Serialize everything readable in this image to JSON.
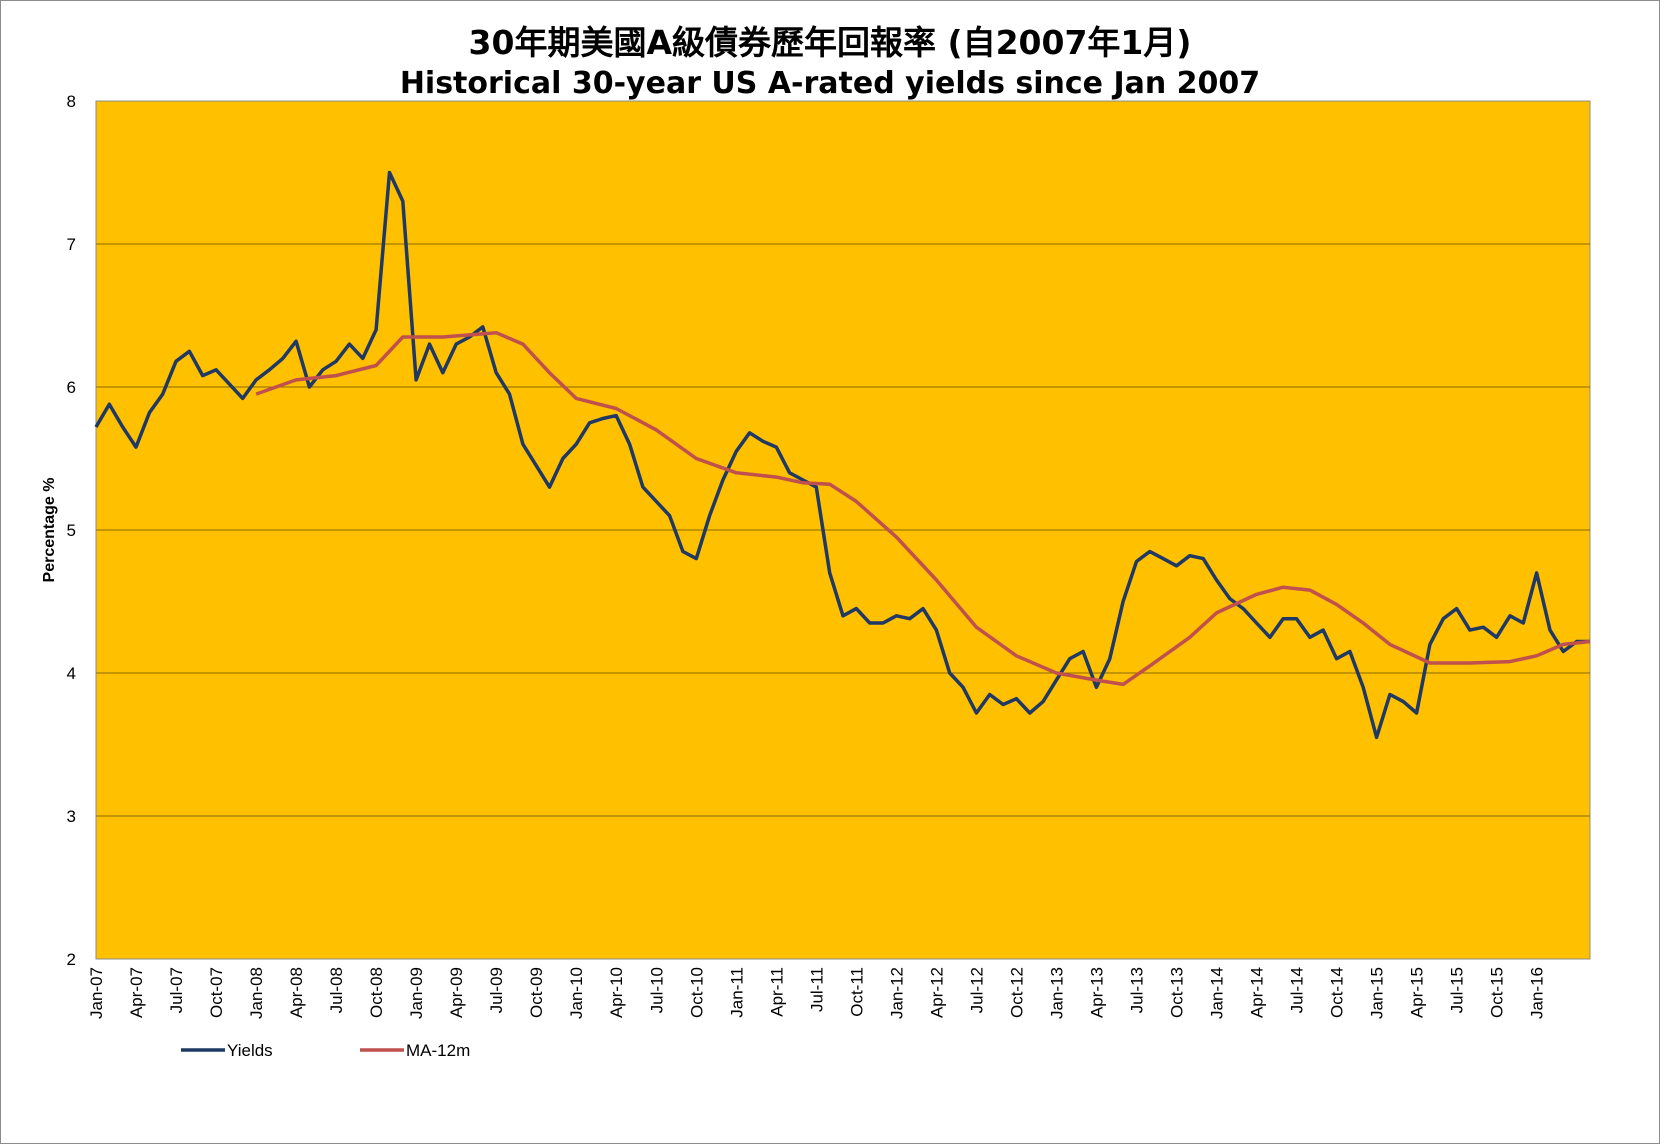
{
  "colors": {
    "plot_bg": "#FFC000",
    "yields": "#1F3864",
    "ma": "#C0504D",
    "gridline": "#8a6a00"
  },
  "chart_data": {
    "type": "line",
    "title": "30年期美國A級債券歷年回報率 (自2007年1月)",
    "subtitle": "Historical 30-year US A-rated yields since Jan 2007",
    "xlabel": "",
    "ylabel": "Percentage %",
    "ylim": [
      2,
      8
    ],
    "yticks": [
      2,
      3,
      4,
      5,
      6,
      7,
      8
    ],
    "xlim": [
      "2007-01",
      "2016-05"
    ],
    "xtick_labels": [
      "Jan-07",
      "Apr-07",
      "Jul-07",
      "Oct-07",
      "Jan-08",
      "Apr-08",
      "Jul-08",
      "Oct-08",
      "Jan-09",
      "Apr-09",
      "Jul-09",
      "Oct-09",
      "Jan-10",
      "Apr-10",
      "Jul-10",
      "Oct-10",
      "Jan-11",
      "Apr-11",
      "Jul-11",
      "Oct-11",
      "Jan-12",
      "Apr-12",
      "Jul-12",
      "Oct-12",
      "Jan-13",
      "Apr-13",
      "Jul-13",
      "Oct-13",
      "Jan-14",
      "Apr-14",
      "Jul-14",
      "Oct-14",
      "Jan-15",
      "Apr-15",
      "Jul-15",
      "Oct-15",
      "Jan-16"
    ],
    "grid": "horizontal",
    "legend_position": "bottom-left",
    "series": [
      {
        "name": "Yields",
        "color": "#1F3864",
        "points": [
          [
            "2007-01",
            5.72
          ],
          [
            "2007-02",
            5.88
          ],
          [
            "2007-03",
            5.72
          ],
          [
            "2007-04",
            5.58
          ],
          [
            "2007-05",
            5.82
          ],
          [
            "2007-06",
            5.95
          ],
          [
            "2007-07",
            6.18
          ],
          [
            "2007-08",
            6.25
          ],
          [
            "2007-09",
            6.08
          ],
          [
            "2007-10",
            6.12
          ],
          [
            "2007-11",
            6.02
          ],
          [
            "2007-12",
            5.92
          ],
          [
            "2008-01",
            6.05
          ],
          [
            "2008-02",
            6.12
          ],
          [
            "2008-03",
            6.2
          ],
          [
            "2008-04",
            6.32
          ],
          [
            "2008-05",
            6.0
          ],
          [
            "2008-06",
            6.12
          ],
          [
            "2008-07",
            6.18
          ],
          [
            "2008-08",
            6.3
          ],
          [
            "2008-09",
            6.2
          ],
          [
            "2008-10",
            6.4
          ],
          [
            "2008-11",
            7.5
          ],
          [
            "2008-12",
            7.3
          ],
          [
            "2009-01",
            6.05
          ],
          [
            "2009-02",
            6.3
          ],
          [
            "2009-03",
            6.1
          ],
          [
            "2009-04",
            6.3
          ],
          [
            "2009-05",
            6.35
          ],
          [
            "2009-06",
            6.42
          ],
          [
            "2009-07",
            6.1
          ],
          [
            "2009-08",
            5.95
          ],
          [
            "2009-09",
            5.6
          ],
          [
            "2009-10",
            5.45
          ],
          [
            "2009-11",
            5.3
          ],
          [
            "2009-12",
            5.5
          ],
          [
            "2010-01",
            5.6
          ],
          [
            "2010-02",
            5.75
          ],
          [
            "2010-03",
            5.78
          ],
          [
            "2010-04",
            5.8
          ],
          [
            "2010-05",
            5.6
          ],
          [
            "2010-06",
            5.3
          ],
          [
            "2010-07",
            5.2
          ],
          [
            "2010-08",
            5.1
          ],
          [
            "2010-09",
            4.85
          ],
          [
            "2010-10",
            4.8
          ],
          [
            "2010-11",
            5.1
          ],
          [
            "2010-12",
            5.35
          ],
          [
            "2011-01",
            5.55
          ],
          [
            "2011-02",
            5.68
          ],
          [
            "2011-03",
            5.62
          ],
          [
            "2011-04",
            5.58
          ],
          [
            "2011-05",
            5.4
          ],
          [
            "2011-06",
            5.35
          ],
          [
            "2011-07",
            5.3
          ],
          [
            "2011-08",
            4.7
          ],
          [
            "2011-09",
            4.4
          ],
          [
            "2011-10",
            4.45
          ],
          [
            "2011-11",
            4.35
          ],
          [
            "2011-12",
            4.35
          ],
          [
            "2012-01",
            4.4
          ],
          [
            "2012-02",
            4.38
          ],
          [
            "2012-03",
            4.45
          ],
          [
            "2012-04",
            4.3
          ],
          [
            "2012-05",
            4.0
          ],
          [
            "2012-06",
            3.9
          ],
          [
            "2012-07",
            3.72
          ],
          [
            "2012-08",
            3.85
          ],
          [
            "2012-09",
            3.78
          ],
          [
            "2012-10",
            3.82
          ],
          [
            "2012-11",
            3.72
          ],
          [
            "2012-12",
            3.8
          ],
          [
            "2013-01",
            3.95
          ],
          [
            "2013-02",
            4.1
          ],
          [
            "2013-03",
            4.15
          ],
          [
            "2013-04",
            3.9
          ],
          [
            "2013-05",
            4.1
          ],
          [
            "2013-06",
            4.5
          ],
          [
            "2013-07",
            4.78
          ],
          [
            "2013-08",
            4.85
          ],
          [
            "2013-09",
            4.8
          ],
          [
            "2013-10",
            4.75
          ],
          [
            "2013-11",
            4.82
          ],
          [
            "2013-12",
            4.8
          ],
          [
            "2014-01",
            4.65
          ],
          [
            "2014-02",
            4.52
          ],
          [
            "2014-03",
            4.45
          ],
          [
            "2014-04",
            4.35
          ],
          [
            "2014-05",
            4.25
          ],
          [
            "2014-06",
            4.38
          ],
          [
            "2014-07",
            4.38
          ],
          [
            "2014-08",
            4.25
          ],
          [
            "2014-09",
            4.3
          ],
          [
            "2014-10",
            4.1
          ],
          [
            "2014-11",
            4.15
          ],
          [
            "2014-12",
            3.9
          ],
          [
            "2015-01",
            3.55
          ],
          [
            "2015-02",
            3.85
          ],
          [
            "2015-03",
            3.8
          ],
          [
            "2015-04",
            3.72
          ],
          [
            "2015-05",
            4.2
          ],
          [
            "2015-06",
            4.38
          ],
          [
            "2015-07",
            4.45
          ],
          [
            "2015-08",
            4.3
          ],
          [
            "2015-09",
            4.32
          ],
          [
            "2015-10",
            4.25
          ],
          [
            "2015-11",
            4.4
          ],
          [
            "2015-12",
            4.35
          ],
          [
            "2016-01",
            4.7
          ],
          [
            "2016-02",
            4.3
          ],
          [
            "2016-03",
            4.15
          ],
          [
            "2016-04",
            4.22
          ],
          [
            "2016-05",
            4.22
          ]
        ]
      },
      {
        "name": "MA-12m",
        "color": "#C0504D",
        "points": [
          [
            "2008-01",
            5.95
          ],
          [
            "2008-04",
            6.05
          ],
          [
            "2008-07",
            6.08
          ],
          [
            "2008-10",
            6.15
          ],
          [
            "2008-12",
            6.35
          ],
          [
            "2009-03",
            6.35
          ],
          [
            "2009-07",
            6.38
          ],
          [
            "2009-09",
            6.3
          ],
          [
            "2009-11",
            6.1
          ],
          [
            "2010-01",
            5.92
          ],
          [
            "2010-04",
            5.85
          ],
          [
            "2010-07",
            5.7
          ],
          [
            "2010-10",
            5.5
          ],
          [
            "2011-01",
            5.4
          ],
          [
            "2011-04",
            5.37
          ],
          [
            "2011-06",
            5.33
          ],
          [
            "2011-08",
            5.32
          ],
          [
            "2011-10",
            5.2
          ],
          [
            "2012-01",
            4.95
          ],
          [
            "2012-04",
            4.65
          ],
          [
            "2012-07",
            4.32
          ],
          [
            "2012-10",
            4.12
          ],
          [
            "2013-01",
            4.0
          ],
          [
            "2013-04",
            3.95
          ],
          [
            "2013-06",
            3.92
          ],
          [
            "2013-08",
            4.05
          ],
          [
            "2013-11",
            4.25
          ],
          [
            "2014-01",
            4.42
          ],
          [
            "2014-04",
            4.55
          ],
          [
            "2014-06",
            4.6
          ],
          [
            "2014-08",
            4.58
          ],
          [
            "2014-10",
            4.48
          ],
          [
            "2014-12",
            4.35
          ],
          [
            "2015-02",
            4.2
          ],
          [
            "2015-05",
            4.07
          ],
          [
            "2015-08",
            4.07
          ],
          [
            "2015-11",
            4.08
          ],
          [
            "2016-01",
            4.12
          ],
          [
            "2016-03",
            4.2
          ],
          [
            "2016-05",
            4.22
          ]
        ]
      }
    ]
  }
}
